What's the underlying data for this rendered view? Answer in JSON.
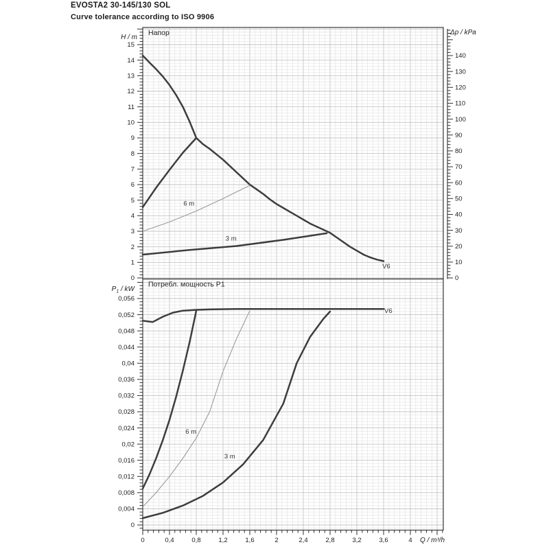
{
  "header": {
    "title": "EVOSTA2 30-145/130 SOL",
    "subtitle": "Curve tolerance according to ISO 9906"
  },
  "chart_data": [
    {
      "type": "line",
      "title": "Напор",
      "xlabel": "Q / m³/h",
      "x_range": [
        0,
        4
      ],
      "x_tick_step": 0.4,
      "x_tick_labels": [
        "0",
        "0,4",
        "0,8",
        "1,2",
        "1,6",
        "2",
        "2,4",
        "2,8",
        "3,2",
        "3,6",
        "4"
      ],
      "y_left": {
        "label_segments": [
          {
            "t": "H / m"
          }
        ],
        "range": [
          0,
          15
        ],
        "tick_step": 1,
        "minor_step": 0.2,
        "tick_labels": [
          "0",
          "1",
          "2",
          "3",
          "4",
          "5",
          "6",
          "7",
          "8",
          "9",
          "10",
          "11",
          "12",
          "13",
          "14",
          "15"
        ]
      },
      "y_right": {
        "label_segments": [
          {
            "t": "Δp / kPa"
          }
        ],
        "range": [
          0,
          140
        ],
        "tick_step": 10,
        "minor_step": 2,
        "tick_labels": [
          "0",
          "10",
          "20",
          "30",
          "40",
          "50",
          "60",
          "70",
          "80",
          "90",
          "100",
          "110",
          "120",
          "130",
          "140"
        ]
      },
      "grid": true,
      "legend": "none",
      "series": [
        {
          "name": "max-speed head curve V6",
          "label": "V6",
          "label_pos": {
            "q": 3.64,
            "v": 0.62
          },
          "style": "thick",
          "points": [
            [
              0,
              14.3
            ],
            [
              0.1,
              13.85
            ],
            [
              0.2,
              13.42
            ],
            [
              0.3,
              12.95
            ],
            [
              0.4,
              12.4
            ],
            [
              0.5,
              11.75
            ],
            [
              0.6,
              11.0
            ],
            [
              0.7,
              10.05
            ],
            [
              0.8,
              9.0
            ],
            [
              0.9,
              8.6
            ],
            [
              1.0,
              8.3
            ],
            [
              1.1,
              7.95
            ],
            [
              1.2,
              7.6
            ],
            [
              1.3,
              7.2
            ],
            [
              1.4,
              6.8
            ],
            [
              1.5,
              6.4
            ],
            [
              1.6,
              6.0
            ],
            [
              1.7,
              5.7
            ],
            [
              1.8,
              5.4
            ],
            [
              1.9,
              5.05
            ],
            [
              2.0,
              4.75
            ],
            [
              2.1,
              4.5
            ],
            [
              2.2,
              4.25
            ],
            [
              2.3,
              4.0
            ],
            [
              2.4,
              3.75
            ],
            [
              2.5,
              3.5
            ],
            [
              2.6,
              3.3
            ],
            [
              2.7,
              3.1
            ],
            [
              2.8,
              2.9
            ],
            [
              2.9,
              2.6
            ],
            [
              3.0,
              2.3
            ],
            [
              3.1,
              2.0
            ],
            [
              3.2,
              1.75
            ],
            [
              3.3,
              1.5
            ],
            [
              3.4,
              1.32
            ],
            [
              3.5,
              1.18
            ],
            [
              3.6,
              1.08
            ]
          ]
        },
        {
          "name": "min-boundary head curve",
          "style": "thick",
          "points": [
            [
              0,
              4.55
            ],
            [
              0.2,
              5.8
            ],
            [
              0.4,
              6.95
            ],
            [
              0.6,
              8.05
            ],
            [
              0.8,
              9.0
            ]
          ]
        },
        {
          "name": "constant head 6 m",
          "label": "6 m",
          "label_pos": {
            "q": 0.69,
            "v": 4.65
          },
          "style": "thin",
          "points": [
            [
              0,
              3.0
            ],
            [
              0.4,
              3.6
            ],
            [
              0.8,
              4.3
            ],
            [
              1.2,
              5.1
            ],
            [
              1.6,
              5.95
            ]
          ]
        },
        {
          "name": "constant head 3 m",
          "label": "3 m",
          "label_pos": {
            "q": 1.32,
            "v": 2.4
          },
          "style": "thick",
          "points": [
            [
              0,
              1.5
            ],
            [
              0.7,
              1.8
            ],
            [
              1.4,
              2.05
            ],
            [
              2.1,
              2.45
            ],
            [
              2.75,
              2.87
            ]
          ]
        }
      ]
    },
    {
      "type": "line",
      "title": "Потребл. мощность P1",
      "xlabel": "Q / m³/h",
      "x_range": [
        0,
        4
      ],
      "x_tick_step": 0.4,
      "x_tick_labels": [
        "0",
        "0,4",
        "0,8",
        "1,2",
        "1,6",
        "2",
        "2,4",
        "2,8",
        "3,2",
        "3,6",
        "4"
      ],
      "y_left": {
        "label_segments": [
          {
            "t": "P"
          },
          {
            "t": "1",
            "sub": true
          },
          {
            "t": " / kW"
          }
        ],
        "range": [
          0,
          0.056
        ],
        "tick_step": 0.004,
        "minor_step": 0.0008,
        "tick_labels": [
          "0",
          "0,004",
          "0,008",
          "0,012",
          "0,016",
          "0,02",
          "0,024",
          "0,028",
          "0,032",
          "0,036",
          "0,04",
          "0,044",
          "0,048",
          "0,052",
          "0,056"
        ]
      },
      "grid": true,
      "legend": "none",
      "series": [
        {
          "name": "max-speed power curve V6",
          "label": "V6",
          "label_pos": {
            "q": 3.67,
            "v": 0.0524
          },
          "style": "thick",
          "points": [
            [
              0,
              0.0505
            ],
            [
              0.15,
              0.0502
            ],
            [
              0.3,
              0.0515
            ],
            [
              0.45,
              0.0525
            ],
            [
              0.6,
              0.053
            ],
            [
              0.8,
              0.0532
            ],
            [
              1.0,
              0.0533
            ],
            [
              1.4,
              0.0534
            ],
            [
              2.0,
              0.0534
            ],
            [
              2.8,
              0.0534
            ],
            [
              3.6,
              0.0534
            ]
          ]
        },
        {
          "name": "min-boundary power curve",
          "style": "thick",
          "points": [
            [
              0,
              0.009
            ],
            [
              0.1,
              0.0125
            ],
            [
              0.2,
              0.0165
            ],
            [
              0.3,
              0.021
            ],
            [
              0.4,
              0.026
            ],
            [
              0.5,
              0.0318
            ],
            [
              0.6,
              0.0382
            ],
            [
              0.7,
              0.0452
            ],
            [
              0.8,
              0.053
            ]
          ]
        },
        {
          "name": "power at constant head 6 m",
          "label": "6 m",
          "label_pos": {
            "q": 0.72,
            "v": 0.0226
          },
          "style": "thin",
          "points": [
            [
              0,
              0.0045
            ],
            [
              0.2,
              0.008
            ],
            [
              0.4,
              0.012
            ],
            [
              0.6,
              0.0165
            ],
            [
              0.8,
              0.0215
            ],
            [
              1.0,
              0.028
            ],
            [
              1.2,
              0.038
            ],
            [
              1.4,
              0.046
            ],
            [
              1.6,
              0.053
            ]
          ]
        },
        {
          "name": "power at constant head 3 m",
          "label": "3 m",
          "label_pos": {
            "q": 1.3,
            "v": 0.0165
          },
          "style": "thick",
          "points": [
            [
              0,
              0.0017
            ],
            [
              0.3,
              0.003
            ],
            [
              0.6,
              0.0048
            ],
            [
              0.9,
              0.0072
            ],
            [
              1.2,
              0.0105
            ],
            [
              1.5,
              0.015
            ],
            [
              1.8,
              0.021
            ],
            [
              2.1,
              0.03
            ],
            [
              2.3,
              0.04
            ],
            [
              2.5,
              0.0465
            ],
            [
              2.7,
              0.051
            ],
            [
              2.8,
              0.0528
            ]
          ]
        }
      ]
    }
  ]
}
